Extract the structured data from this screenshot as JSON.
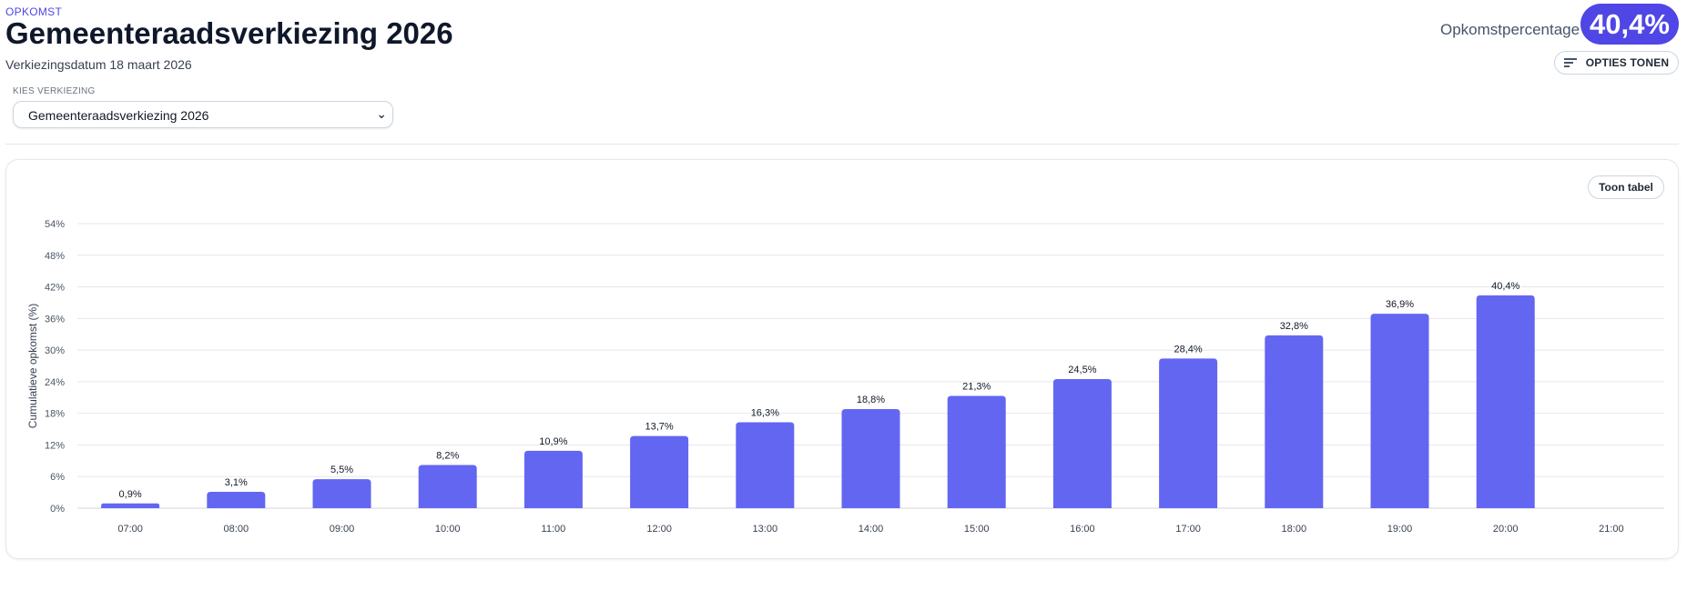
{
  "header": {
    "eyebrow": "OPKOMST",
    "title": "Gemeenteraadsverkiezing 2026",
    "subtitle": "Verkiezingsdatum 18 maart 2026",
    "turnout_label": "Opkomstpercentage",
    "turnout_value": "40,4%",
    "options_button": "OPTIES TONEN"
  },
  "selector": {
    "label": "KIES VERKIEZING",
    "selected": "Gemeenteraadsverkiezing 2026"
  },
  "chart_panel": {
    "table_button": "Toon tabel"
  },
  "colors": {
    "accent": "#4f46e5",
    "bar": "#6366f1"
  },
  "chart_data": {
    "type": "bar",
    "ylabel": "Cumulatieve opkomst (%)",
    "xlabel": "",
    "ylim": [
      0,
      54
    ],
    "yticks": [
      "0%",
      "6%",
      "12%",
      "18%",
      "24%",
      "30%",
      "36%",
      "42%",
      "48%",
      "54%"
    ],
    "categories": [
      "07:00",
      "08:00",
      "09:00",
      "10:00",
      "11:00",
      "12:00",
      "13:00",
      "14:00",
      "15:00",
      "16:00",
      "17:00",
      "18:00",
      "19:00",
      "20:00",
      "21:00"
    ],
    "values": [
      0.9,
      3.1,
      5.5,
      8.2,
      10.9,
      13.7,
      16.3,
      18.8,
      21.3,
      24.5,
      28.4,
      32.8,
      36.9,
      40.4,
      null
    ],
    "value_labels": [
      "0,9%",
      "3,1%",
      "5,5%",
      "8,2%",
      "10,9%",
      "13,7%",
      "16,3%",
      "18,8%",
      "21,3%",
      "24,5%",
      "28,4%",
      "32,8%",
      "36,9%",
      "40,4%",
      ""
    ],
    "grid": true,
    "legend": "none"
  }
}
